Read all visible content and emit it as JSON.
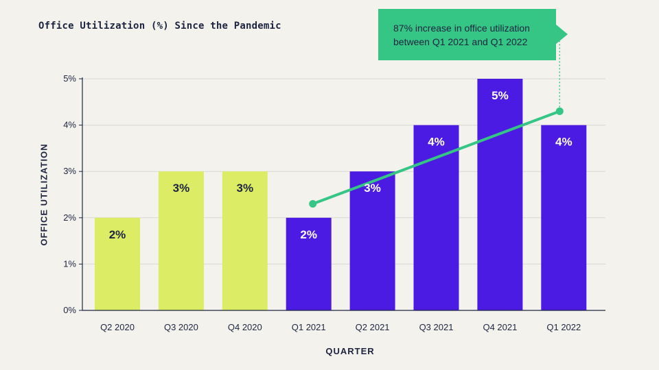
{
  "title": "Office Utilization (%) Since the Pandemic",
  "callout": {
    "line1": "87% increase in office utilization",
    "line2": "between Q1 2021 and Q1 2022"
  },
  "colors": {
    "pre_2021": "#dcec64",
    "from_2021": "#4c1be3",
    "trend": "#35c585",
    "axis": "#1d2440",
    "background": "#f3f2ed"
  },
  "chart_data": {
    "type": "bar",
    "title": "Office Utilization (%) Since the Pandemic",
    "xlabel": "QUARTER",
    "ylabel": "OFFICE UTILIZATION",
    "categories": [
      "Q2 2020",
      "Q3 2020",
      "Q4 2020",
      "Q1 2021",
      "Q2 2021",
      "Q3 2021",
      "Q4 2021",
      "Q1 2022"
    ],
    "values": [
      2,
      3,
      3,
      2,
      3,
      4,
      5,
      4
    ],
    "data_labels": [
      "2%",
      "3%",
      "3%",
      "2%",
      "3%",
      "4%",
      "5%",
      "4%"
    ],
    "yticks": [
      "0%",
      "1%",
      "2%",
      "3%",
      "4%",
      "5%"
    ],
    "ylim": [
      0,
      5
    ],
    "grid": true,
    "trend_line": {
      "from": "Q1 2021",
      "to": "Q1 2022",
      "y_start": 2.3,
      "y_end": 4.3
    },
    "annotation": "87% increase in office utilization between Q1 2021 and Q1 2022"
  }
}
